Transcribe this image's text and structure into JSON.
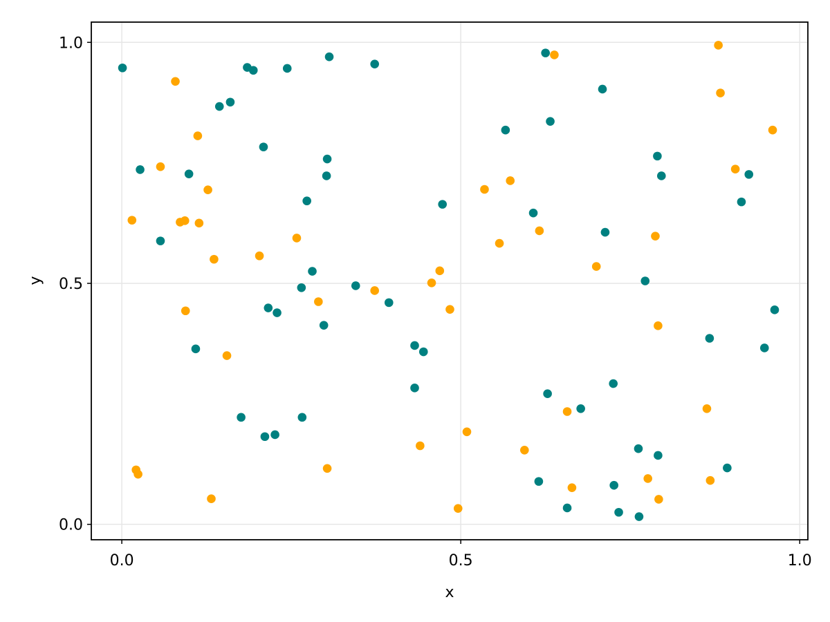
{
  "chart_data": {
    "type": "scatter",
    "xlabel": "x",
    "ylabel": "y",
    "xlim": [
      -0.045,
      1.012
    ],
    "ylim": [
      -0.032,
      1.042
    ],
    "xticks": [
      0.0,
      0.5,
      1.0
    ],
    "yticks": [
      0.0,
      0.5,
      1.0
    ],
    "xtick_labels": [
      "0.0",
      "0.5",
      "1.0"
    ],
    "ytick_labels": [
      "0.0",
      "0.5",
      "1.0"
    ],
    "grid": true,
    "series": [
      {
        "color": "#008080",
        "points": [
          [
            0.001,
            0.947
          ],
          [
            0.027,
            0.736
          ],
          [
            0.057,
            0.588
          ],
          [
            0.099,
            0.727
          ],
          [
            0.109,
            0.364
          ],
          [
            0.144,
            0.867
          ],
          [
            0.16,
            0.876
          ],
          [
            0.176,
            0.222
          ],
          [
            0.185,
            0.948
          ],
          [
            0.194,
            0.942
          ],
          [
            0.209,
            0.783
          ],
          [
            0.211,
            0.182
          ],
          [
            0.216,
            0.449
          ],
          [
            0.226,
            0.186
          ],
          [
            0.229,
            0.439
          ],
          [
            0.244,
            0.946
          ],
          [
            0.265,
            0.491
          ],
          [
            0.266,
            0.222
          ],
          [
            0.273,
            0.671
          ],
          [
            0.281,
            0.525
          ],
          [
            0.298,
            0.413
          ],
          [
            0.302,
            0.723
          ],
          [
            0.303,
            0.758
          ],
          [
            0.306,
            0.97
          ],
          [
            0.345,
            0.495
          ],
          [
            0.373,
            0.955
          ],
          [
            0.394,
            0.46
          ],
          [
            0.432,
            0.371
          ],
          [
            0.432,
            0.283
          ],
          [
            0.445,
            0.358
          ],
          [
            0.473,
            0.664
          ],
          [
            0.566,
            0.818
          ],
          [
            0.607,
            0.646
          ],
          [
            0.615,
            0.089
          ],
          [
            0.625,
            0.978
          ],
          [
            0.628,
            0.271
          ],
          [
            0.632,
            0.836
          ],
          [
            0.657,
            0.034
          ],
          [
            0.677,
            0.24
          ],
          [
            0.709,
            0.903
          ],
          [
            0.713,
            0.606
          ],
          [
            0.725,
            0.292
          ],
          [
            0.726,
            0.081
          ],
          [
            0.733,
            0.025
          ],
          [
            0.762,
            0.157
          ],
          [
            0.763,
            0.016
          ],
          [
            0.772,
            0.505
          ],
          [
            0.79,
            0.764
          ],
          [
            0.791,
            0.143
          ],
          [
            0.796,
            0.723
          ],
          [
            0.867,
            0.386
          ],
          [
            0.893,
            0.117
          ],
          [
            0.914,
            0.669
          ],
          [
            0.925,
            0.726
          ],
          [
            0.948,
            0.366
          ],
          [
            0.963,
            0.445
          ]
        ]
      },
      {
        "color": "#ffa500",
        "points": [
          [
            0.015,
            0.631
          ],
          [
            0.021,
            0.113
          ],
          [
            0.024,
            0.104
          ],
          [
            0.057,
            0.742
          ],
          [
            0.079,
            0.919
          ],
          [
            0.086,
            0.627
          ],
          [
            0.093,
            0.63
          ],
          [
            0.094,
            0.443
          ],
          [
            0.112,
            0.806
          ],
          [
            0.114,
            0.625
          ],
          [
            0.127,
            0.694
          ],
          [
            0.132,
            0.053
          ],
          [
            0.136,
            0.55
          ],
          [
            0.155,
            0.35
          ],
          [
            0.203,
            0.557
          ],
          [
            0.258,
            0.594
          ],
          [
            0.29,
            0.462
          ],
          [
            0.303,
            0.116
          ],
          [
            0.373,
            0.485
          ],
          [
            0.44,
            0.163
          ],
          [
            0.457,
            0.501
          ],
          [
            0.469,
            0.526
          ],
          [
            0.484,
            0.446
          ],
          [
            0.496,
            0.033
          ],
          [
            0.509,
            0.192
          ],
          [
            0.535,
            0.695
          ],
          [
            0.557,
            0.583
          ],
          [
            0.573,
            0.713
          ],
          [
            0.594,
            0.154
          ],
          [
            0.616,
            0.609
          ],
          [
            0.638,
            0.974
          ],
          [
            0.657,
            0.234
          ],
          [
            0.664,
            0.076
          ],
          [
            0.7,
            0.535
          ],
          [
            0.776,
            0.095
          ],
          [
            0.787,
            0.598
          ],
          [
            0.791,
            0.412
          ],
          [
            0.792,
            0.052
          ],
          [
            0.863,
            0.24
          ],
          [
            0.868,
            0.091
          ],
          [
            0.88,
            0.994
          ],
          [
            0.883,
            0.895
          ],
          [
            0.905,
            0.737
          ],
          [
            0.96,
            0.818
          ]
        ]
      }
    ]
  }
}
